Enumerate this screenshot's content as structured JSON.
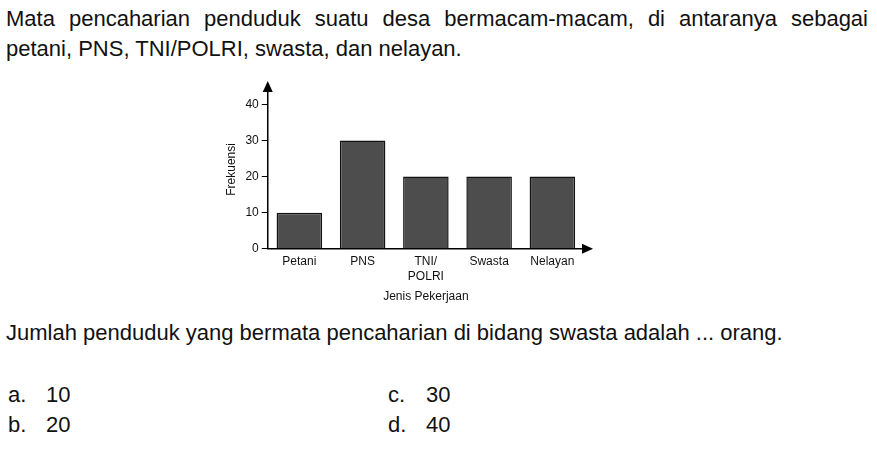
{
  "intro": "Mata pencaharian penduduk suatu desa bermacam-macam, di antaranya sebagai petani, PNS, TNI/POLRI, swasta, dan nelayan.",
  "chart_data": {
    "type": "bar",
    "categories": [
      "Petani",
      "PNS",
      [
        "TNI/",
        "POLRI"
      ],
      "Swasta",
      "Nelayan"
    ],
    "values": [
      10,
      30,
      20,
      20,
      20
    ],
    "color": "#4d4d4d",
    "x_label": "Jenis Pekerjaan",
    "y_label": "Frekuensi",
    "ylim": [
      0,
      44
    ],
    "yticks": [
      0,
      10,
      20,
      30,
      40
    ],
    "grid": false
  },
  "question": "Jumlah penduduk yang bermata pencaharian di bidang swasta adalah ... orang.",
  "options": [
    {
      "letter": "a.",
      "text": "10"
    },
    {
      "letter": "b.",
      "text": "20"
    },
    {
      "letter": "c.",
      "text": "30"
    },
    {
      "letter": "d.",
      "text": "40"
    }
  ]
}
